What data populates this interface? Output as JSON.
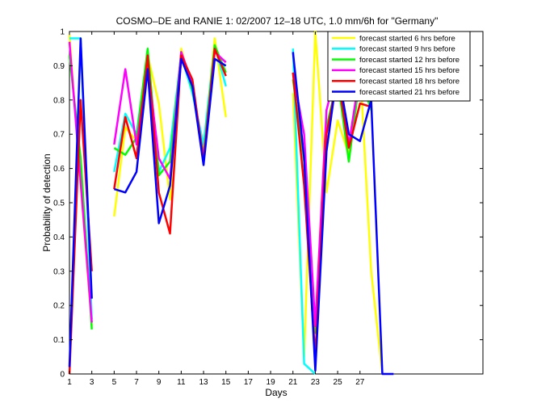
{
  "chart_data": {
    "type": "line",
    "title": "COSMO–DE and RANIE 1: 02/2007 12–18 UTC, 1.0 mm/6h for \"Germany\"",
    "xlabel": "Days",
    "ylabel": "Probability of detection",
    "xlim": [
      1,
      38
    ],
    "ylim": [
      0,
      1
    ],
    "xticks": [
      "1",
      "3",
      "5",
      "7",
      "9",
      "11",
      "13",
      "15",
      "17",
      "19",
      "21",
      "23",
      "25",
      "27"
    ],
    "yticks": [
      "0",
      "0.1",
      "0.2",
      "0.3",
      "0.4",
      "0.5",
      "0.6",
      "0.7",
      "0.8",
      "0.9",
      "1"
    ],
    "grid": false,
    "legend_position": "top-right",
    "series": [
      {
        "name": "forecast started 6 hrs before",
        "color": "#ffff00",
        "segments": [
          [
            [
              1,
              0.99
            ],
            [
              2,
              0.55
            ],
            [
              3,
              0.14
            ]
          ],
          [
            [
              5,
              0.46
            ],
            [
              6,
              0.72
            ],
            [
              7,
              0.68
            ],
            [
              8,
              0.93
            ],
            [
              9,
              0.79
            ],
            [
              10,
              0.51
            ],
            [
              11,
              0.95
            ],
            [
              12,
              0.83
            ],
            [
              13,
              0.65
            ],
            [
              14,
              0.98
            ],
            [
              15,
              0.75
            ]
          ],
          [
            [
              21,
              0.82
            ],
            [
              22,
              0.05
            ],
            [
              23,
              1.0
            ],
            [
              24,
              0.53
            ],
            [
              25,
              0.74
            ],
            [
              26,
              0.64
            ],
            [
              27,
              0.9
            ],
            [
              28,
              0.3
            ],
            [
              29,
              0.0
            ]
          ]
        ]
      },
      {
        "name": "forecast started 9 hrs before",
        "color": "#00ffff",
        "segments": [
          [
            [
              1,
              0.98
            ],
            [
              2,
              0.98
            ],
            [
              3,
              0.16
            ]
          ],
          [
            [
              5,
              0.59
            ],
            [
              6,
              0.76
            ],
            [
              7,
              0.7
            ],
            [
              8,
              0.94
            ],
            [
              9,
              0.59
            ],
            [
              10,
              0.66
            ],
            [
              11,
              0.93
            ],
            [
              12,
              0.82
            ],
            [
              13,
              0.67
            ],
            [
              14,
              0.96
            ],
            [
              15,
              0.84
            ]
          ],
          [
            [
              21,
              0.95
            ],
            [
              22,
              0.03
            ],
            [
              23,
              0.0
            ]
          ]
        ]
      },
      {
        "name": "forecast started 12 hrs before",
        "color": "#00ff00",
        "segments": [
          [
            [
              1,
              0.93
            ],
            [
              2,
              0.63
            ],
            [
              3,
              0.13
            ]
          ],
          [
            [
              5,
              0.66
            ],
            [
              6,
              0.64
            ],
            [
              7,
              0.69
            ],
            [
              8,
              0.95
            ],
            [
              9,
              0.58
            ],
            [
              10,
              0.62
            ],
            [
              11,
              0.94
            ],
            [
              12,
              0.83
            ],
            [
              13,
              0.64
            ],
            [
              14,
              0.96
            ],
            [
              15,
              0.88
            ]
          ],
          [
            [
              21,
              0.86
            ],
            [
              22,
              0.62
            ],
            [
              23,
              0.12
            ],
            [
              24,
              0.72
            ],
            [
              25,
              0.86
            ],
            [
              26,
              0.62
            ],
            [
              27,
              0.87
            ],
            [
              28,
              0.77
            ]
          ]
        ]
      },
      {
        "name": "forecast started 15 hrs before",
        "color": "#ff00ff",
        "segments": [
          [
            [
              1,
              0.97
            ],
            [
              2,
              0.56
            ],
            [
              3,
              0.15
            ]
          ],
          [
            [
              5,
              0.67
            ],
            [
              6,
              0.89
            ],
            [
              7,
              0.67
            ],
            [
              8,
              0.9
            ],
            [
              9,
              0.63
            ],
            [
              10,
              0.57
            ],
            [
              11,
              0.94
            ],
            [
              12,
              0.85
            ],
            [
              13,
              0.63
            ],
            [
              14,
              0.94
            ],
            [
              15,
              0.91
            ]
          ],
          [
            [
              21,
              0.88
            ],
            [
              22,
              0.7
            ],
            [
              23,
              0.14
            ],
            [
              24,
              0.77
            ],
            [
              25,
              0.9
            ],
            [
              26,
              0.67
            ],
            [
              27,
              0.88
            ],
            [
              28,
              0.8
            ]
          ]
        ]
      },
      {
        "name": "forecast started 18 hrs before",
        "color": "#ff0000",
        "segments": [
          [
            [
              1,
              0.0
            ],
            [
              2,
              0.8
            ],
            [
              3,
              0.3
            ]
          ],
          [
            [
              5,
              0.54
            ],
            [
              6,
              0.75
            ],
            [
              7,
              0.63
            ],
            [
              8,
              0.93
            ],
            [
              9,
              0.53
            ],
            [
              10,
              0.41
            ],
            [
              11,
              0.93
            ],
            [
              12,
              0.86
            ],
            [
              13,
              0.62
            ],
            [
              14,
              0.95
            ],
            [
              15,
              0.87
            ]
          ],
          [
            [
              21,
              0.88
            ],
            [
              22,
              0.55
            ],
            [
              23,
              0.05
            ],
            [
              24,
              0.7
            ],
            [
              25,
              0.87
            ],
            [
              26,
              0.66
            ],
            [
              27,
              0.79
            ],
            [
              28,
              0.78
            ]
          ]
        ]
      },
      {
        "name": "forecast started 21 hrs before",
        "color": "#0000ff",
        "segments": [
          [
            [
              1,
              0.02
            ],
            [
              2,
              0.98
            ],
            [
              3,
              0.22
            ]
          ],
          [
            [
              5,
              0.54
            ],
            [
              6,
              0.53
            ],
            [
              7,
              0.59
            ],
            [
              8,
              0.89
            ],
            [
              9,
              0.44
            ],
            [
              10,
              0.55
            ],
            [
              11,
              0.92
            ],
            [
              12,
              0.84
            ],
            [
              13,
              0.61
            ],
            [
              14,
              0.92
            ],
            [
              15,
              0.9
            ]
          ],
          [
            [
              21,
              0.94
            ],
            [
              22,
              0.63
            ],
            [
              23,
              0.01
            ],
            [
              24,
              0.65
            ],
            [
              25,
              0.89
            ],
            [
              26,
              0.7
            ],
            [
              27,
              0.68
            ],
            [
              28,
              0.8
            ],
            [
              29,
              0.0
            ],
            [
              30,
              0.0
            ]
          ]
        ]
      }
    ]
  }
}
